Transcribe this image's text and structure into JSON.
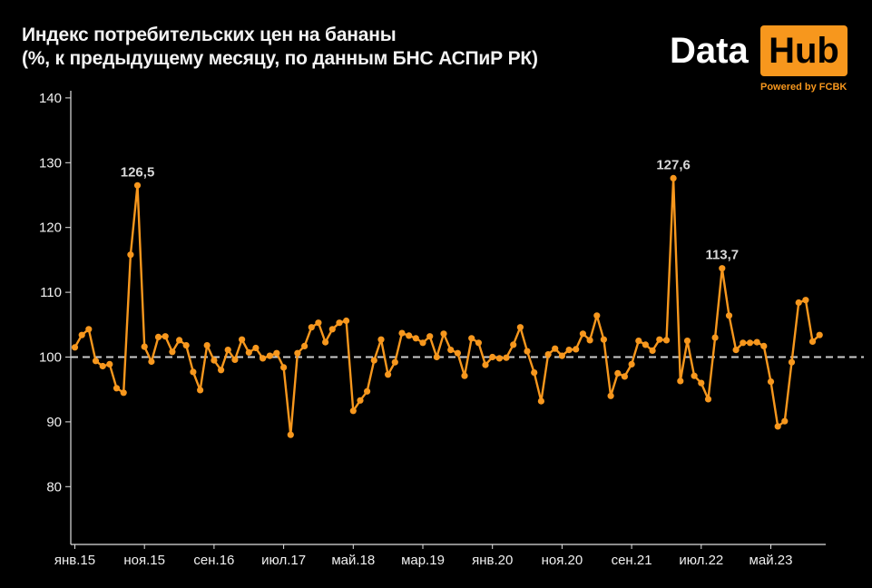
{
  "header": {
    "title_line1": "Индекс потребительских цен на бананы",
    "title_line2": "(%, к предыдущему месяцу, по данным БНС АСПиР РК)"
  },
  "logo": {
    "word1": "Data",
    "word2": "Hub",
    "powered": "Powered by FCBK",
    "accent": "#f7971d"
  },
  "chart_data": {
    "type": "line",
    "x_start": "янв.15",
    "x_step": "month",
    "ylim": [
      75,
      140
    ],
    "yticks": [
      80,
      90,
      100,
      110,
      120,
      130,
      140
    ],
    "xtick_labels": [
      "янв.15",
      "ноя.15",
      "сен.16",
      "июл.17",
      "май.18",
      "мар.19",
      "янв.20",
      "ноя.20",
      "сен.21",
      "июл.22",
      "май.23"
    ],
    "xtick_every": 10,
    "reference_line": 100,
    "line_color": "#f7971d",
    "reference_color": "#cccccc",
    "series": [
      {
        "values": [
          101.5,
          103.4,
          104.3,
          99.4,
          98.6,
          98.9,
          95.2,
          94.5,
          115.8,
          126.5,
          101.6,
          99.3,
          103.1,
          103.2,
          100.8,
          102.6,
          101.8,
          97.7,
          94.9,
          101.8,
          99.5,
          98.0,
          101.1,
          99.6,
          102.7,
          100.7,
          101.4,
          99.8,
          100.2,
          100.6,
          98.4,
          88.0,
          100.6,
          101.7,
          104.6,
          105.3,
          102.3,
          104.3,
          105.3,
          105.6,
          91.7,
          93.3,
          94.7,
          99.5,
          102.7,
          97.3,
          99.2,
          103.7,
          103.3,
          102.9,
          102.2,
          103.2,
          100.0,
          103.6,
          101.1,
          100.6,
          97.1,
          102.9,
          102.2,
          98.8,
          100.0,
          99.8,
          99.9,
          101.9,
          104.6,
          100.9,
          97.6,
          93.2,
          100.4,
          101.3,
          100.2,
          101.1,
          101.2,
          103.6,
          102.6,
          106.4,
          102.7,
          94.0,
          97.5,
          97.0,
          98.9,
          102.5,
          101.9,
          101.0,
          102.7,
          102.6,
          127.6,
          96.3,
          102.5,
          97.1,
          96.0,
          93.5,
          103.0,
          113.7,
          106.4,
          101.1,
          102.2,
          102.2,
          102.3,
          101.7,
          96.2,
          89.3,
          90.1,
          99.2,
          108.4,
          108.8,
          102.4,
          103.4
        ]
      }
    ],
    "annotations": [
      {
        "index": 9,
        "label": "126,5"
      },
      {
        "index": 86,
        "label": "127,6"
      },
      {
        "index": 93,
        "label": "113,7"
      }
    ]
  }
}
